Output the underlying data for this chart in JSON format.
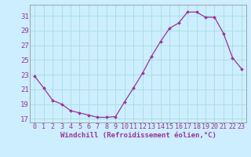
{
  "hours": [
    0,
    1,
    2,
    3,
    4,
    5,
    6,
    7,
    8,
    9,
    10,
    11,
    12,
    13,
    14,
    15,
    16,
    17,
    18,
    19,
    20,
    21,
    22,
    23
  ],
  "values": [
    22.8,
    21.2,
    19.5,
    19.0,
    18.1,
    17.8,
    17.5,
    17.2,
    17.2,
    17.3,
    19.3,
    21.2,
    23.2,
    25.5,
    27.5,
    29.3,
    30.0,
    31.5,
    31.5,
    30.8,
    30.8,
    28.6,
    25.3,
    23.8
  ],
  "line_color": "#993399",
  "marker": "D",
  "marker_size": 2.0,
  "background_color": "#cceeff",
  "grid_color": "#aadddd",
  "xlabel": "Windchill (Refroidissement éolien,°C)",
  "xlabel_color": "#993399",
  "xlabel_fontsize": 6.5,
  "ylabel_fontsize": 6.5,
  "tick_fontsize": 6.0,
  "ylim": [
    16.5,
    32.5
  ],
  "yticks": [
    17,
    19,
    21,
    23,
    25,
    27,
    29,
    31
  ],
  "xlim": [
    -0.5,
    23.5
  ]
}
